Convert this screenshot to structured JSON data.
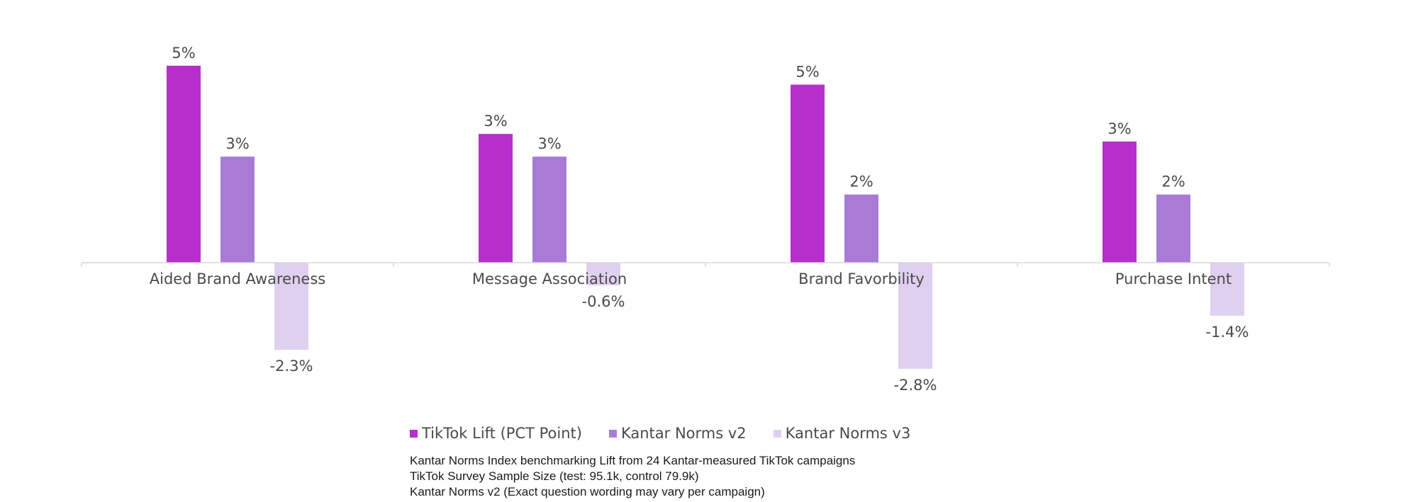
{
  "chart_data": {
    "type": "bar",
    "categories": [
      "Aided Brand Awareness",
      "Message Association",
      "Brand Favorbility",
      "Purchase Intent"
    ],
    "series": [
      {
        "name": "TikTok Lift (PCT Point)",
        "color": "#b62fcc",
        "values": [
          5.2,
          3.4,
          4.7,
          3.2
        ],
        "labels": [
          "5%",
          "3%",
          "5%",
          "3%"
        ]
      },
      {
        "name": "Kantar Norms v2",
        "color": "#a97bd7",
        "values": [
          2.8,
          2.8,
          1.8,
          1.8
        ],
        "labels": [
          "3%",
          "3%",
          "2%",
          "2%"
        ]
      },
      {
        "name": "Kantar Norms v3",
        "color": "#e0d0f0",
        "values": [
          -2.3,
          -0.6,
          -2.8,
          -1.4
        ],
        "labels": [
          "-2.3%",
          "-0.6%",
          "-2.8%",
          "-1.4%"
        ]
      }
    ],
    "ylim": [
      -3.5,
      6.0
    ],
    "grid": false,
    "legend_position": "bottom"
  },
  "footnotes": [
    "Kantar Norms Index benchmarking Lift from 24 Kantar-measured TikTok campaigns",
    "TikTok Survey Sample Size (test: 95.1k, control 79.9k)",
    "Kantar Norms v2 (Exact question wording may vary per campaign)"
  ]
}
